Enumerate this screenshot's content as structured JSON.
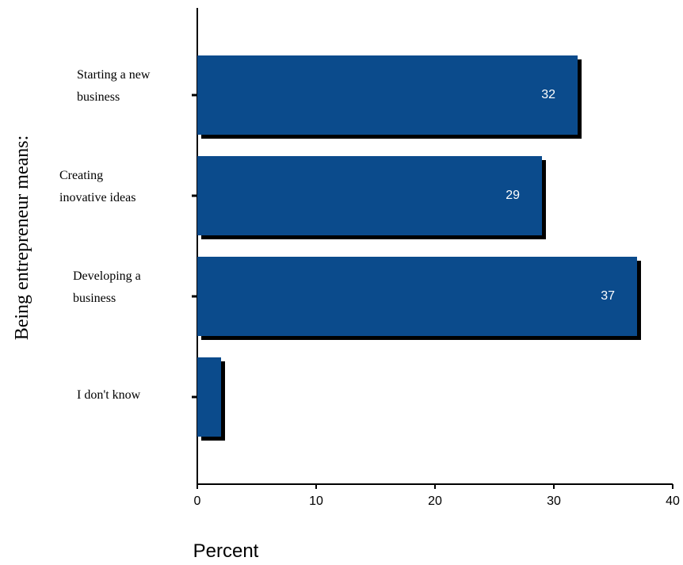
{
  "chart_data": {
    "type": "bar",
    "orientation": "horizontal",
    "categories": [
      [
        "Starting a new",
        "business"
      ],
      [
        "Creating",
        "inovative ideas"
      ],
      [
        "Developing a",
        "business"
      ],
      [
        "I don't know"
      ]
    ],
    "values": [
      32,
      29,
      37,
      2
    ],
    "data_labels": [
      "32",
      "29",
      "37",
      ""
    ],
    "xlabel": "Percent",
    "ylabel": "Being entrepreneur means:",
    "xlim": [
      0,
      40
    ],
    "xticks": [
      0,
      10,
      20,
      30,
      40
    ],
    "grid": false,
    "bar_color": "#0b4b8c",
    "shadow_color": "#000000"
  }
}
